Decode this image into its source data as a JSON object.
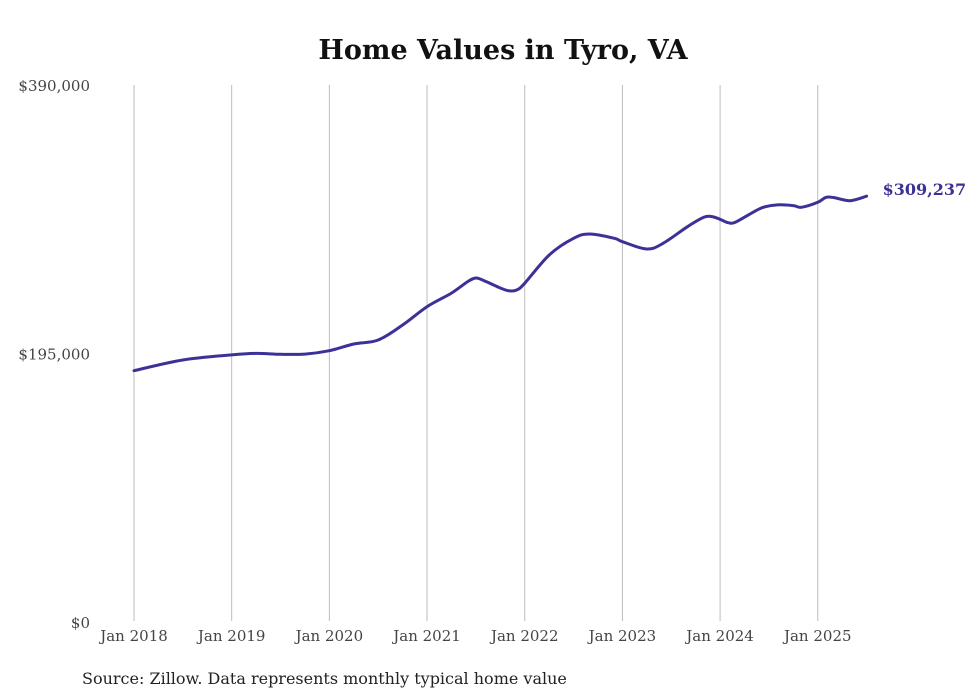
{
  "chart_data": {
    "type": "line",
    "title": "Home Values in Tyro, VA",
    "xlabel": "",
    "ylabel": "",
    "ylim": [
      0,
      390000
    ],
    "y_ticks": [
      {
        "value": 0,
        "label": "$0"
      },
      {
        "value": 195000,
        "label": "$195,000"
      },
      {
        "value": 390000,
        "label": "$390,000"
      }
    ],
    "x_ticks": [
      {
        "date": "2018-01",
        "label": "Jan 2018"
      },
      {
        "date": "2019-01",
        "label": "Jan 2019"
      },
      {
        "date": "2020-01",
        "label": "Jan 2020"
      },
      {
        "date": "2021-01",
        "label": "Jan 2021"
      },
      {
        "date": "2022-01",
        "label": "Jan 2022"
      },
      {
        "date": "2023-01",
        "label": "Jan 2023"
      },
      {
        "date": "2024-01",
        "label": "Jan 2024"
      },
      {
        "date": "2025-01",
        "label": "Jan 2025"
      }
    ],
    "grid": "vertical at each January",
    "series": [
      {
        "name": "Typical home value",
        "color": "#3b3196",
        "end_label": "$309,237",
        "x": [
          "2018-01",
          "2018-07",
          "2019-01",
          "2019-04",
          "2019-07",
          "2019-10",
          "2020-01",
          "2020-04",
          "2020-07",
          "2020-10",
          "2021-01",
          "2021-04",
          "2021-06",
          "2021-07",
          "2021-08",
          "2021-10",
          "2021-11",
          "2021-12",
          "2022-01",
          "2022-04",
          "2022-07",
          "2022-09",
          "2022-12",
          "2023-01",
          "2023-04",
          "2023-06",
          "2023-09",
          "2023-11",
          "2023-12",
          "2024-01",
          "2024-02",
          "2024-03",
          "2024-06",
          "2024-08",
          "2024-10",
          "2024-11",
          "2025-01",
          "2025-02",
          "2025-03",
          "2025-05",
          "2025-07"
        ],
        "values": [
          182500,
          190300,
          194000,
          195100,
          194400,
          194600,
          197000,
          201900,
          204800,
          215700,
          229000,
          238900,
          247200,
          249800,
          247900,
          242600,
          240600,
          241100,
          246000,
          266500,
          278700,
          281800,
          278700,
          276200,
          270900,
          275000,
          287100,
          293900,
          294400,
          292500,
          290000,
          290700,
          300500,
          302900,
          302400,
          301200,
          304800,
          308400,
          308200,
          306000,
          309237
        ]
      }
    ],
    "source": "Source: Zillow. Data represents monthly typical home value"
  }
}
